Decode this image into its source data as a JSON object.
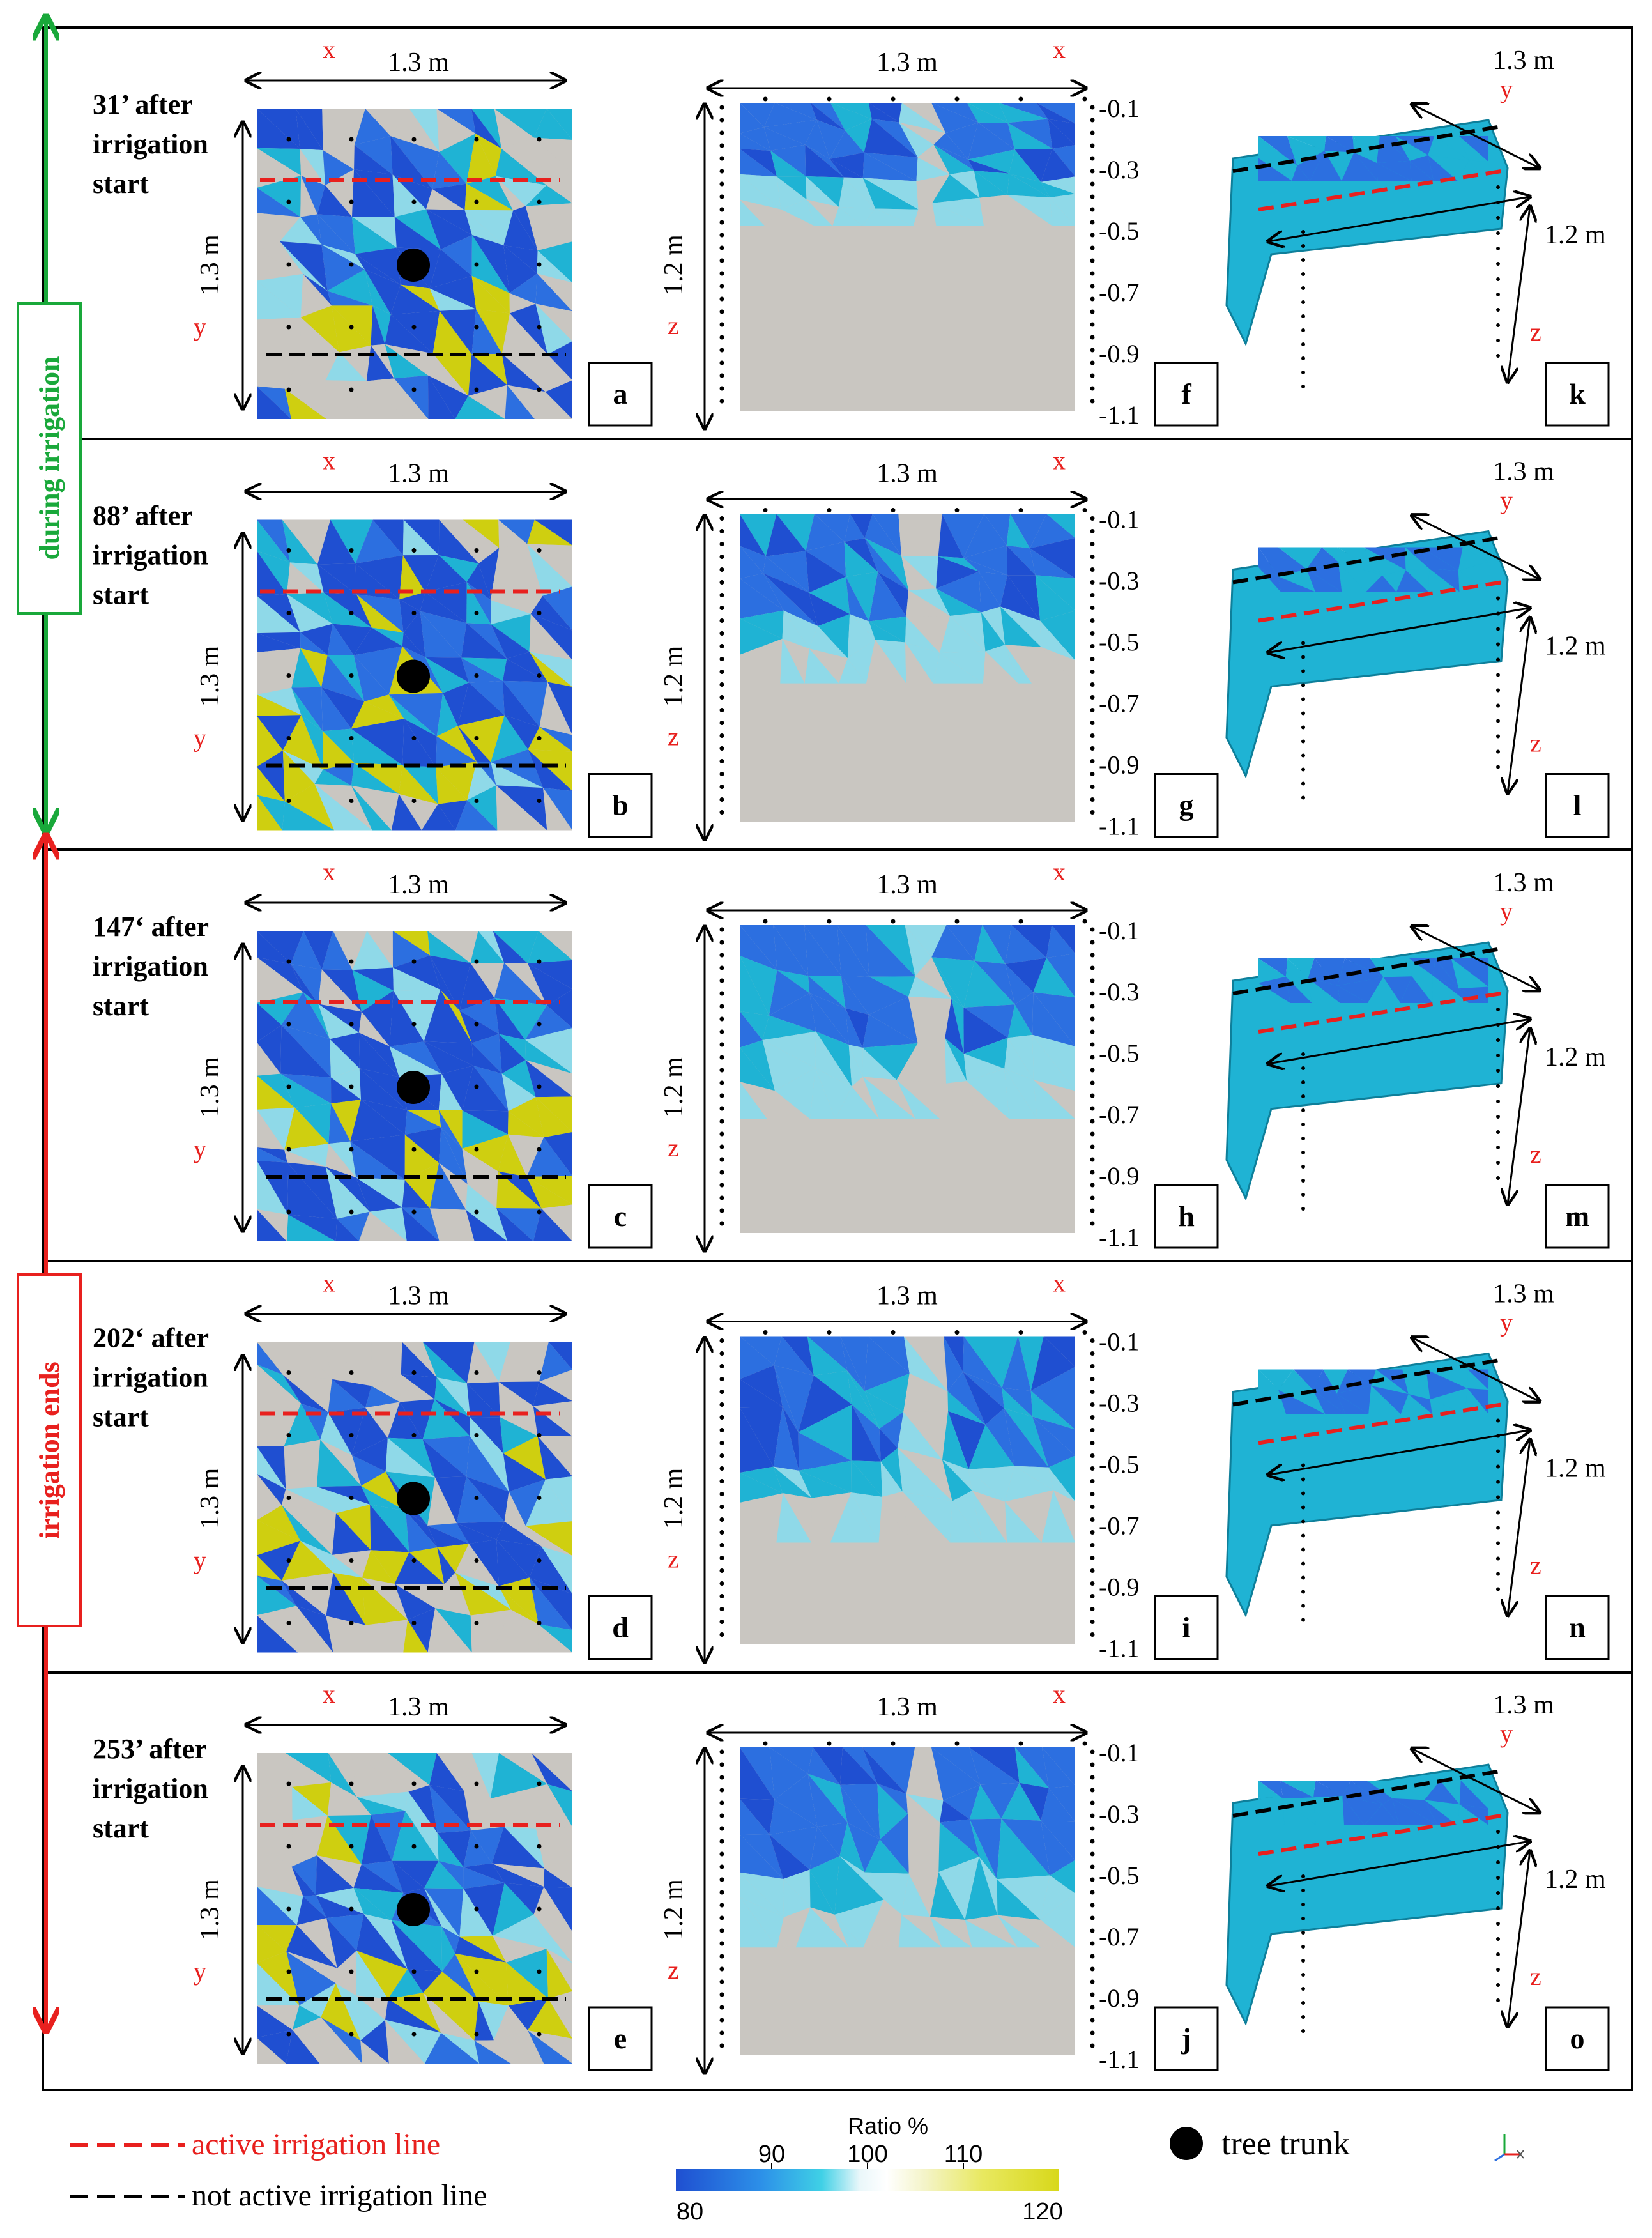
{
  "colors": {
    "blue_dark": "#1f4fd1",
    "blue": "#2c6fe0",
    "cyan": "#1fb3d4",
    "cyan_light": "#8fd9e8",
    "gray": "#c9c6c1",
    "yellow": "#cfcf10",
    "red": "#e8201e",
    "green": "#19a83a",
    "black": "#000000"
  },
  "phases": {
    "during": "during irrigation",
    "ends": "irrigation ends"
  },
  "rows": [
    {
      "time": "31’ after",
      "line2": "irrigation",
      "line3": "start",
      "labels": [
        "a",
        "f",
        "k"
      ],
      "fill": {
        "blue": 0.52,
        "yellow": 0.06,
        "depth": 0.25
      }
    },
    {
      "time": "88’ after",
      "line2": "irrigation",
      "line3": "start",
      "labels": [
        "b",
        "g",
        "l"
      ],
      "fill": {
        "blue": 0.65,
        "yellow": 0.15,
        "depth": 0.4
      }
    },
    {
      "time": "147‘ after",
      "line2": "irrigation",
      "line3": "start",
      "labels": [
        "c",
        "h",
        "m"
      ],
      "fill": {
        "blue": 0.55,
        "yellow": 0.14,
        "depth": 0.48
      }
    },
    {
      "time": "202‘ after",
      "line2": "irrigation",
      "line3": "start",
      "labels": [
        "d",
        "i",
        "n"
      ],
      "fill": {
        "blue": 0.48,
        "yellow": 0.14,
        "depth": 0.52
      }
    },
    {
      "time": "253’ after",
      "line2": "irrigation",
      "line3": "start",
      "labels": [
        "e",
        "j",
        "o"
      ],
      "fill": {
        "blue": 0.42,
        "yellow": 0.12,
        "depth": 0.5
      }
    }
  ],
  "axis_labels": {
    "dim_x": "1.3 m",
    "dim_y": "1.3 m",
    "dim_z": "1.2 m",
    "x": "x",
    "y": "y",
    "z": "z"
  },
  "depth_ticks": [
    "-0.1",
    "-0.3",
    "-0.5",
    "-0.7",
    "-0.9",
    "-1.1"
  ],
  "legend": {
    "active": "active irrigation line",
    "not_active": "not active irrigation line",
    "trunk": "tree trunk",
    "colorbar_title": "Ratio %",
    "colorbar_ticks": [
      "80",
      "90",
      "100",
      "110",
      "120"
    ]
  }
}
